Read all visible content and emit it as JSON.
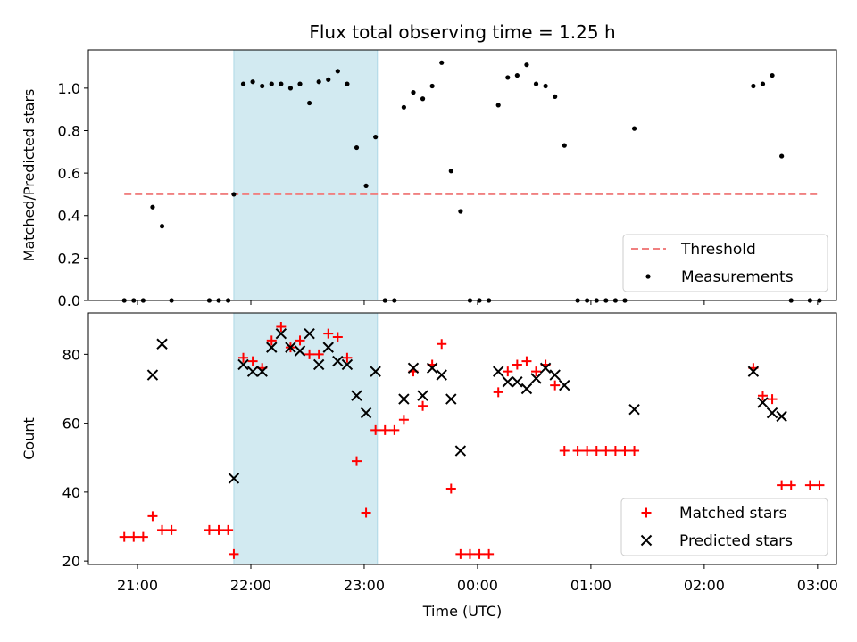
{
  "chart_data": [
    {
      "type": "scatter",
      "title": "Flux total observing time = 1.25 h",
      "xlabel": "",
      "ylabel": "Matched/Predicted stars",
      "x_unit": "time (UTC, hours)",
      "xlim": [
        "20:34",
        "03:10"
      ],
      "ylim": [
        0,
        1.18
      ],
      "yticks": [
        "0.0",
        "0.2",
        "0.4",
        "0.6",
        "0.8",
        "1.0"
      ],
      "shaded_region": [
        "21:51",
        "23:07"
      ],
      "shaded_color": "#add8e6",
      "legend_placement": "lower right",
      "threshold": {
        "name": "Threshold",
        "value": 0.5,
        "x_range": [
          "20:53",
          "03:00"
        ],
        "color": "#f08080"
      },
      "series": [
        {
          "name": "Measurements",
          "marker": "dot",
          "color": "#000000",
          "points": [
            [
              "20:53",
              0.0
            ],
            [
              "20:58",
              0.0
            ],
            [
              "21:03",
              0.0
            ],
            [
              "21:08",
              0.44
            ],
            [
              "21:13",
              0.35
            ],
            [
              "21:18",
              0.0
            ],
            [
              "21:38",
              0.0
            ],
            [
              "21:43",
              0.0
            ],
            [
              "21:48",
              0.0
            ],
            [
              "21:51",
              0.5
            ],
            [
              "21:56",
              1.02
            ],
            [
              "22:01",
              1.03
            ],
            [
              "22:06",
              1.01
            ],
            [
              "22:11",
              1.02
            ],
            [
              "22:16",
              1.02
            ],
            [
              "22:21",
              1.0
            ],
            [
              "22:26",
              1.02
            ],
            [
              "22:31",
              0.93
            ],
            [
              "22:36",
              1.03
            ],
            [
              "22:41",
              1.04
            ],
            [
              "22:46",
              1.08
            ],
            [
              "22:51",
              1.02
            ],
            [
              "22:56",
              0.72
            ],
            [
              "23:01",
              0.54
            ],
            [
              "23:06",
              0.77
            ],
            [
              "23:11",
              0.0
            ],
            [
              "23:16",
              0.0
            ],
            [
              "23:21",
              0.91
            ],
            [
              "23:26",
              0.98
            ],
            [
              "23:31",
              0.95
            ],
            [
              "23:36",
              1.01
            ],
            [
              "23:41",
              1.12
            ],
            [
              "23:46",
              0.61
            ],
            [
              "23:51",
              0.42
            ],
            [
              "23:56",
              0.0
            ],
            [
              "00:01",
              0.0
            ],
            [
              "00:06",
              0.0
            ],
            [
              "00:11",
              0.92
            ],
            [
              "00:16",
              1.05
            ],
            [
              "00:21",
              1.06
            ],
            [
              "00:26",
              1.11
            ],
            [
              "00:31",
              1.02
            ],
            [
              "00:36",
              1.01
            ],
            [
              "00:41",
              0.96
            ],
            [
              "00:46",
              0.73
            ],
            [
              "00:53",
              0.0
            ],
            [
              "00:58",
              0.0
            ],
            [
              "01:03",
              0.0
            ],
            [
              "01:08",
              0.0
            ],
            [
              "01:13",
              0.0
            ],
            [
              "01:18",
              0.0
            ],
            [
              "01:23",
              0.81
            ],
            [
              "02:26",
              1.01
            ],
            [
              "02:31",
              1.02
            ],
            [
              "02:36",
              1.06
            ],
            [
              "02:41",
              0.68
            ],
            [
              "02:46",
              0.0
            ],
            [
              "02:56",
              0.0
            ],
            [
              "03:01",
              0.0
            ]
          ]
        }
      ]
    },
    {
      "type": "scatter",
      "title": "",
      "xlabel": "Time (UTC)",
      "ylabel": "Count",
      "xlim": [
        "20:34",
        "03:10"
      ],
      "ylim": [
        19,
        92
      ],
      "yticks": [
        "20",
        "40",
        "60",
        "80"
      ],
      "xticks": [
        "21:00",
        "22:00",
        "23:00",
        "00:00",
        "01:00",
        "02:00",
        "03:00"
      ],
      "shaded_region": [
        "21:51",
        "23:07"
      ],
      "shaded_color": "#add8e6",
      "legend_placement": "lower right",
      "series": [
        {
          "name": "Matched stars",
          "marker": "plus",
          "color": "#ff0000",
          "points": [
            [
              "20:53",
              27
            ],
            [
              "20:58",
              27
            ],
            [
              "21:03",
              27
            ],
            [
              "21:08",
              33
            ],
            [
              "21:13",
              29
            ],
            [
              "21:18",
              29
            ],
            [
              "21:38",
              29
            ],
            [
              "21:43",
              29
            ],
            [
              "21:48",
              29
            ],
            [
              "21:51",
              22
            ],
            [
              "21:56",
              79
            ],
            [
              "22:01",
              78
            ],
            [
              "22:06",
              76
            ],
            [
              "22:11",
              84
            ],
            [
              "22:16",
              88
            ],
            [
              "22:21",
              82
            ],
            [
              "22:26",
              84
            ],
            [
              "22:31",
              80
            ],
            [
              "22:36",
              80
            ],
            [
              "22:41",
              86
            ],
            [
              "22:46",
              85
            ],
            [
              "22:51",
              79
            ],
            [
              "22:56",
              49
            ],
            [
              "23:01",
              34
            ],
            [
              "23:06",
              58
            ],
            [
              "23:11",
              58
            ],
            [
              "23:16",
              58
            ],
            [
              "23:21",
              61
            ],
            [
              "23:26",
              75
            ],
            [
              "23:31",
              65
            ],
            [
              "23:36",
              77
            ],
            [
              "23:41",
              83
            ],
            [
              "23:46",
              41
            ],
            [
              "23:51",
              22
            ],
            [
              "23:56",
              22
            ],
            [
              "00:01",
              22
            ],
            [
              "00:06",
              22
            ],
            [
              "00:11",
              69
            ],
            [
              "00:16",
              75
            ],
            [
              "00:21",
              77
            ],
            [
              "00:26",
              78
            ],
            [
              "00:31",
              75
            ],
            [
              "00:36",
              77
            ],
            [
              "00:41",
              71
            ],
            [
              "00:46",
              52
            ],
            [
              "00:53",
              52
            ],
            [
              "00:58",
              52
            ],
            [
              "01:03",
              52
            ],
            [
              "01:08",
              52
            ],
            [
              "01:13",
              52
            ],
            [
              "01:18",
              52
            ],
            [
              "01:23",
              52
            ],
            [
              "02:26",
              76
            ],
            [
              "02:31",
              68
            ],
            [
              "02:36",
              67
            ],
            [
              "02:41",
              42
            ],
            [
              "02:46",
              42
            ],
            [
              "02:56",
              42
            ],
            [
              "03:01",
              42
            ]
          ]
        },
        {
          "name": "Predicted stars",
          "marker": "x",
          "color": "#000000",
          "points": [
            [
              "21:08",
              74
            ],
            [
              "21:13",
              83
            ],
            [
              "21:51",
              44
            ],
            [
              "21:56",
              77
            ],
            [
              "22:01",
              75
            ],
            [
              "22:06",
              75
            ],
            [
              "22:11",
              82
            ],
            [
              "22:16",
              86
            ],
            [
              "22:21",
              82
            ],
            [
              "22:26",
              81
            ],
            [
              "22:31",
              86
            ],
            [
              "22:36",
              77
            ],
            [
              "22:41",
              82
            ],
            [
              "22:46",
              78
            ],
            [
              "22:51",
              77
            ],
            [
              "22:56",
              68
            ],
            [
              "23:01",
              63
            ],
            [
              "23:06",
              75
            ],
            [
              "23:21",
              67
            ],
            [
              "23:26",
              76
            ],
            [
              "23:31",
              68
            ],
            [
              "23:36",
              76
            ],
            [
              "23:41",
              74
            ],
            [
              "23:46",
              67
            ],
            [
              "23:51",
              52
            ],
            [
              "00:11",
              75
            ],
            [
              "00:16",
              72
            ],
            [
              "00:21",
              72
            ],
            [
              "00:26",
              70
            ],
            [
              "00:31",
              73
            ],
            [
              "00:36",
              76
            ],
            [
              "00:41",
              74
            ],
            [
              "00:46",
              71
            ],
            [
              "01:23",
              64
            ],
            [
              "02:26",
              75
            ],
            [
              "02:31",
              66
            ],
            [
              "02:36",
              63
            ],
            [
              "02:41",
              62
            ]
          ]
        }
      ]
    }
  ]
}
